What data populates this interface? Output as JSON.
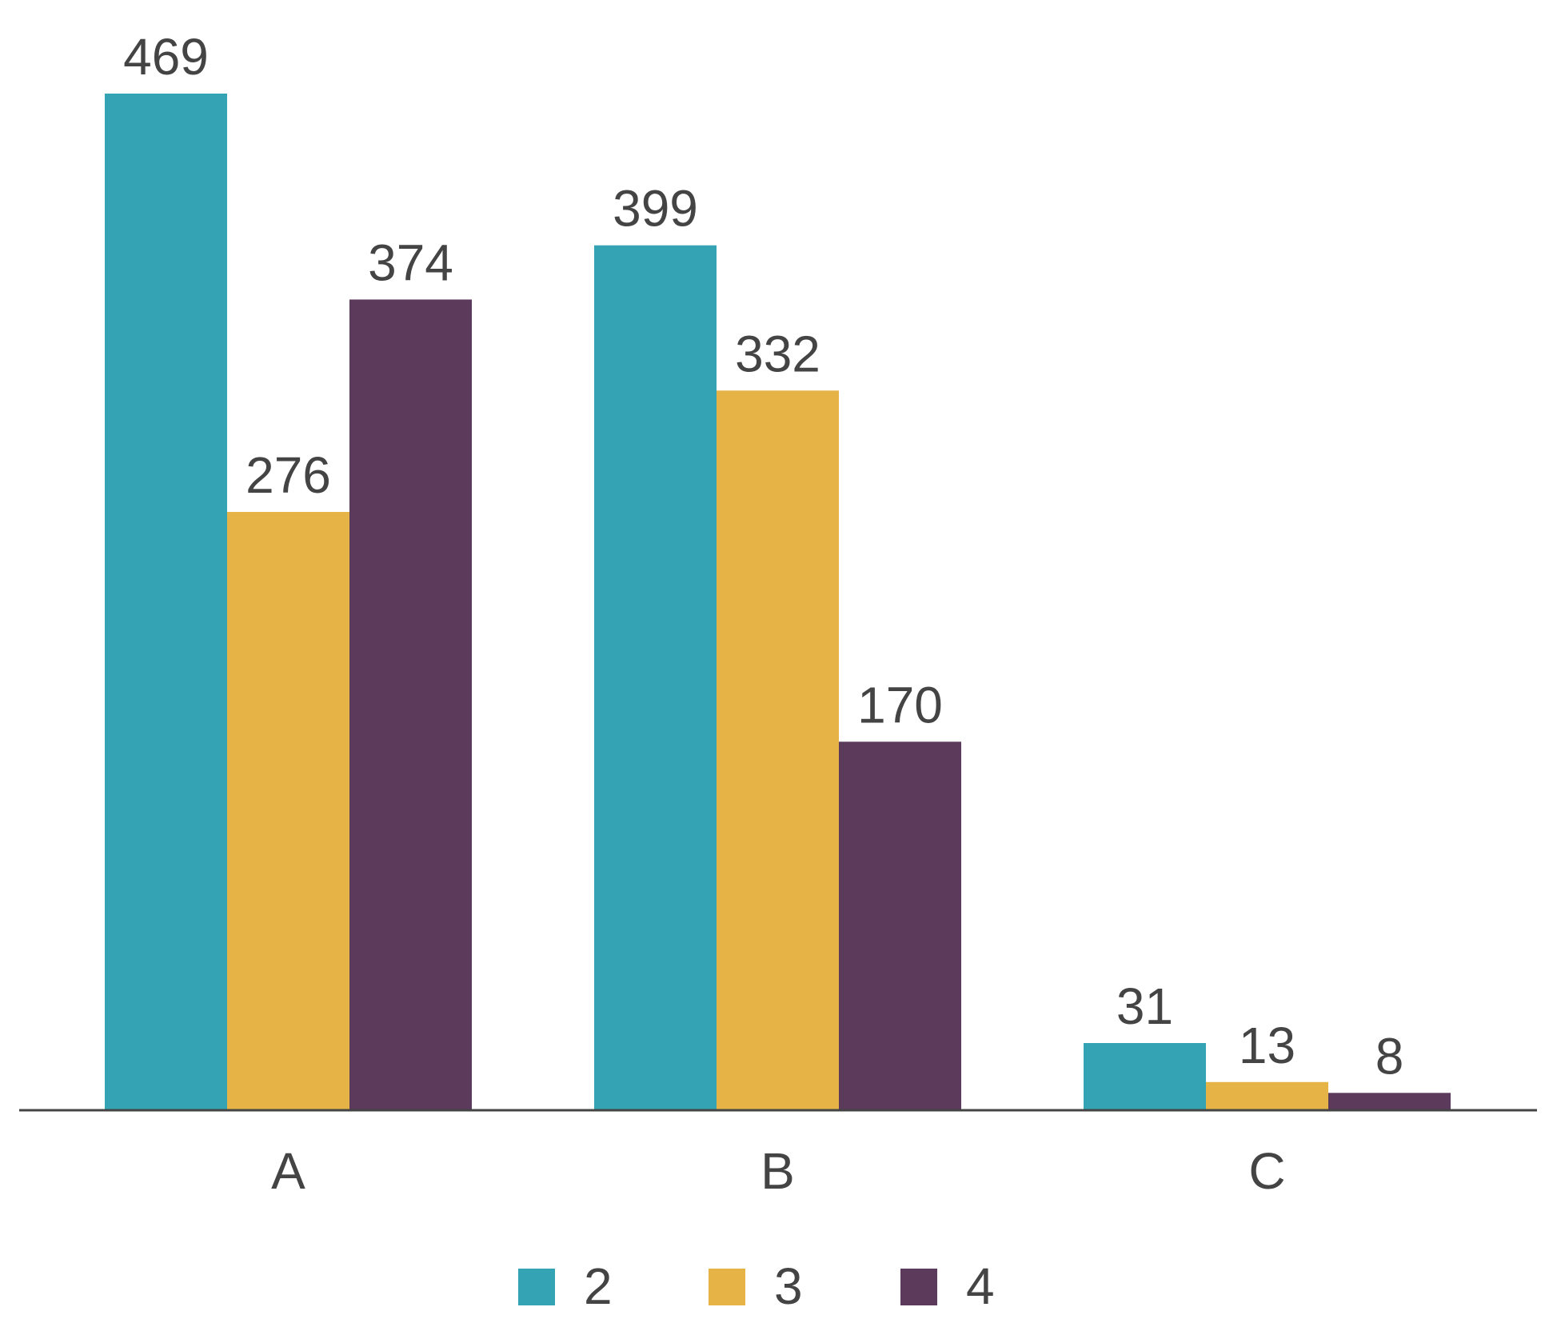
{
  "chart_data": {
    "type": "bar",
    "categories": [
      "A",
      "B",
      "C"
    ],
    "series": [
      {
        "name": "2",
        "values": [
          469,
          399,
          31
        ],
        "color": "#34a3b3"
      },
      {
        "name": "3",
        "values": [
          276,
          332,
          13
        ],
        "color": "#e5b346"
      },
      {
        "name": "4",
        "values": [
          374,
          170,
          8
        ],
        "color": "#5b3a5c"
      }
    ],
    "title": "",
    "xlabel": "",
    "ylabel": "",
    "ylim": [
      0,
      469
    ],
    "grid": false,
    "legend_position": "bottom-center",
    "data_labels": true
  }
}
